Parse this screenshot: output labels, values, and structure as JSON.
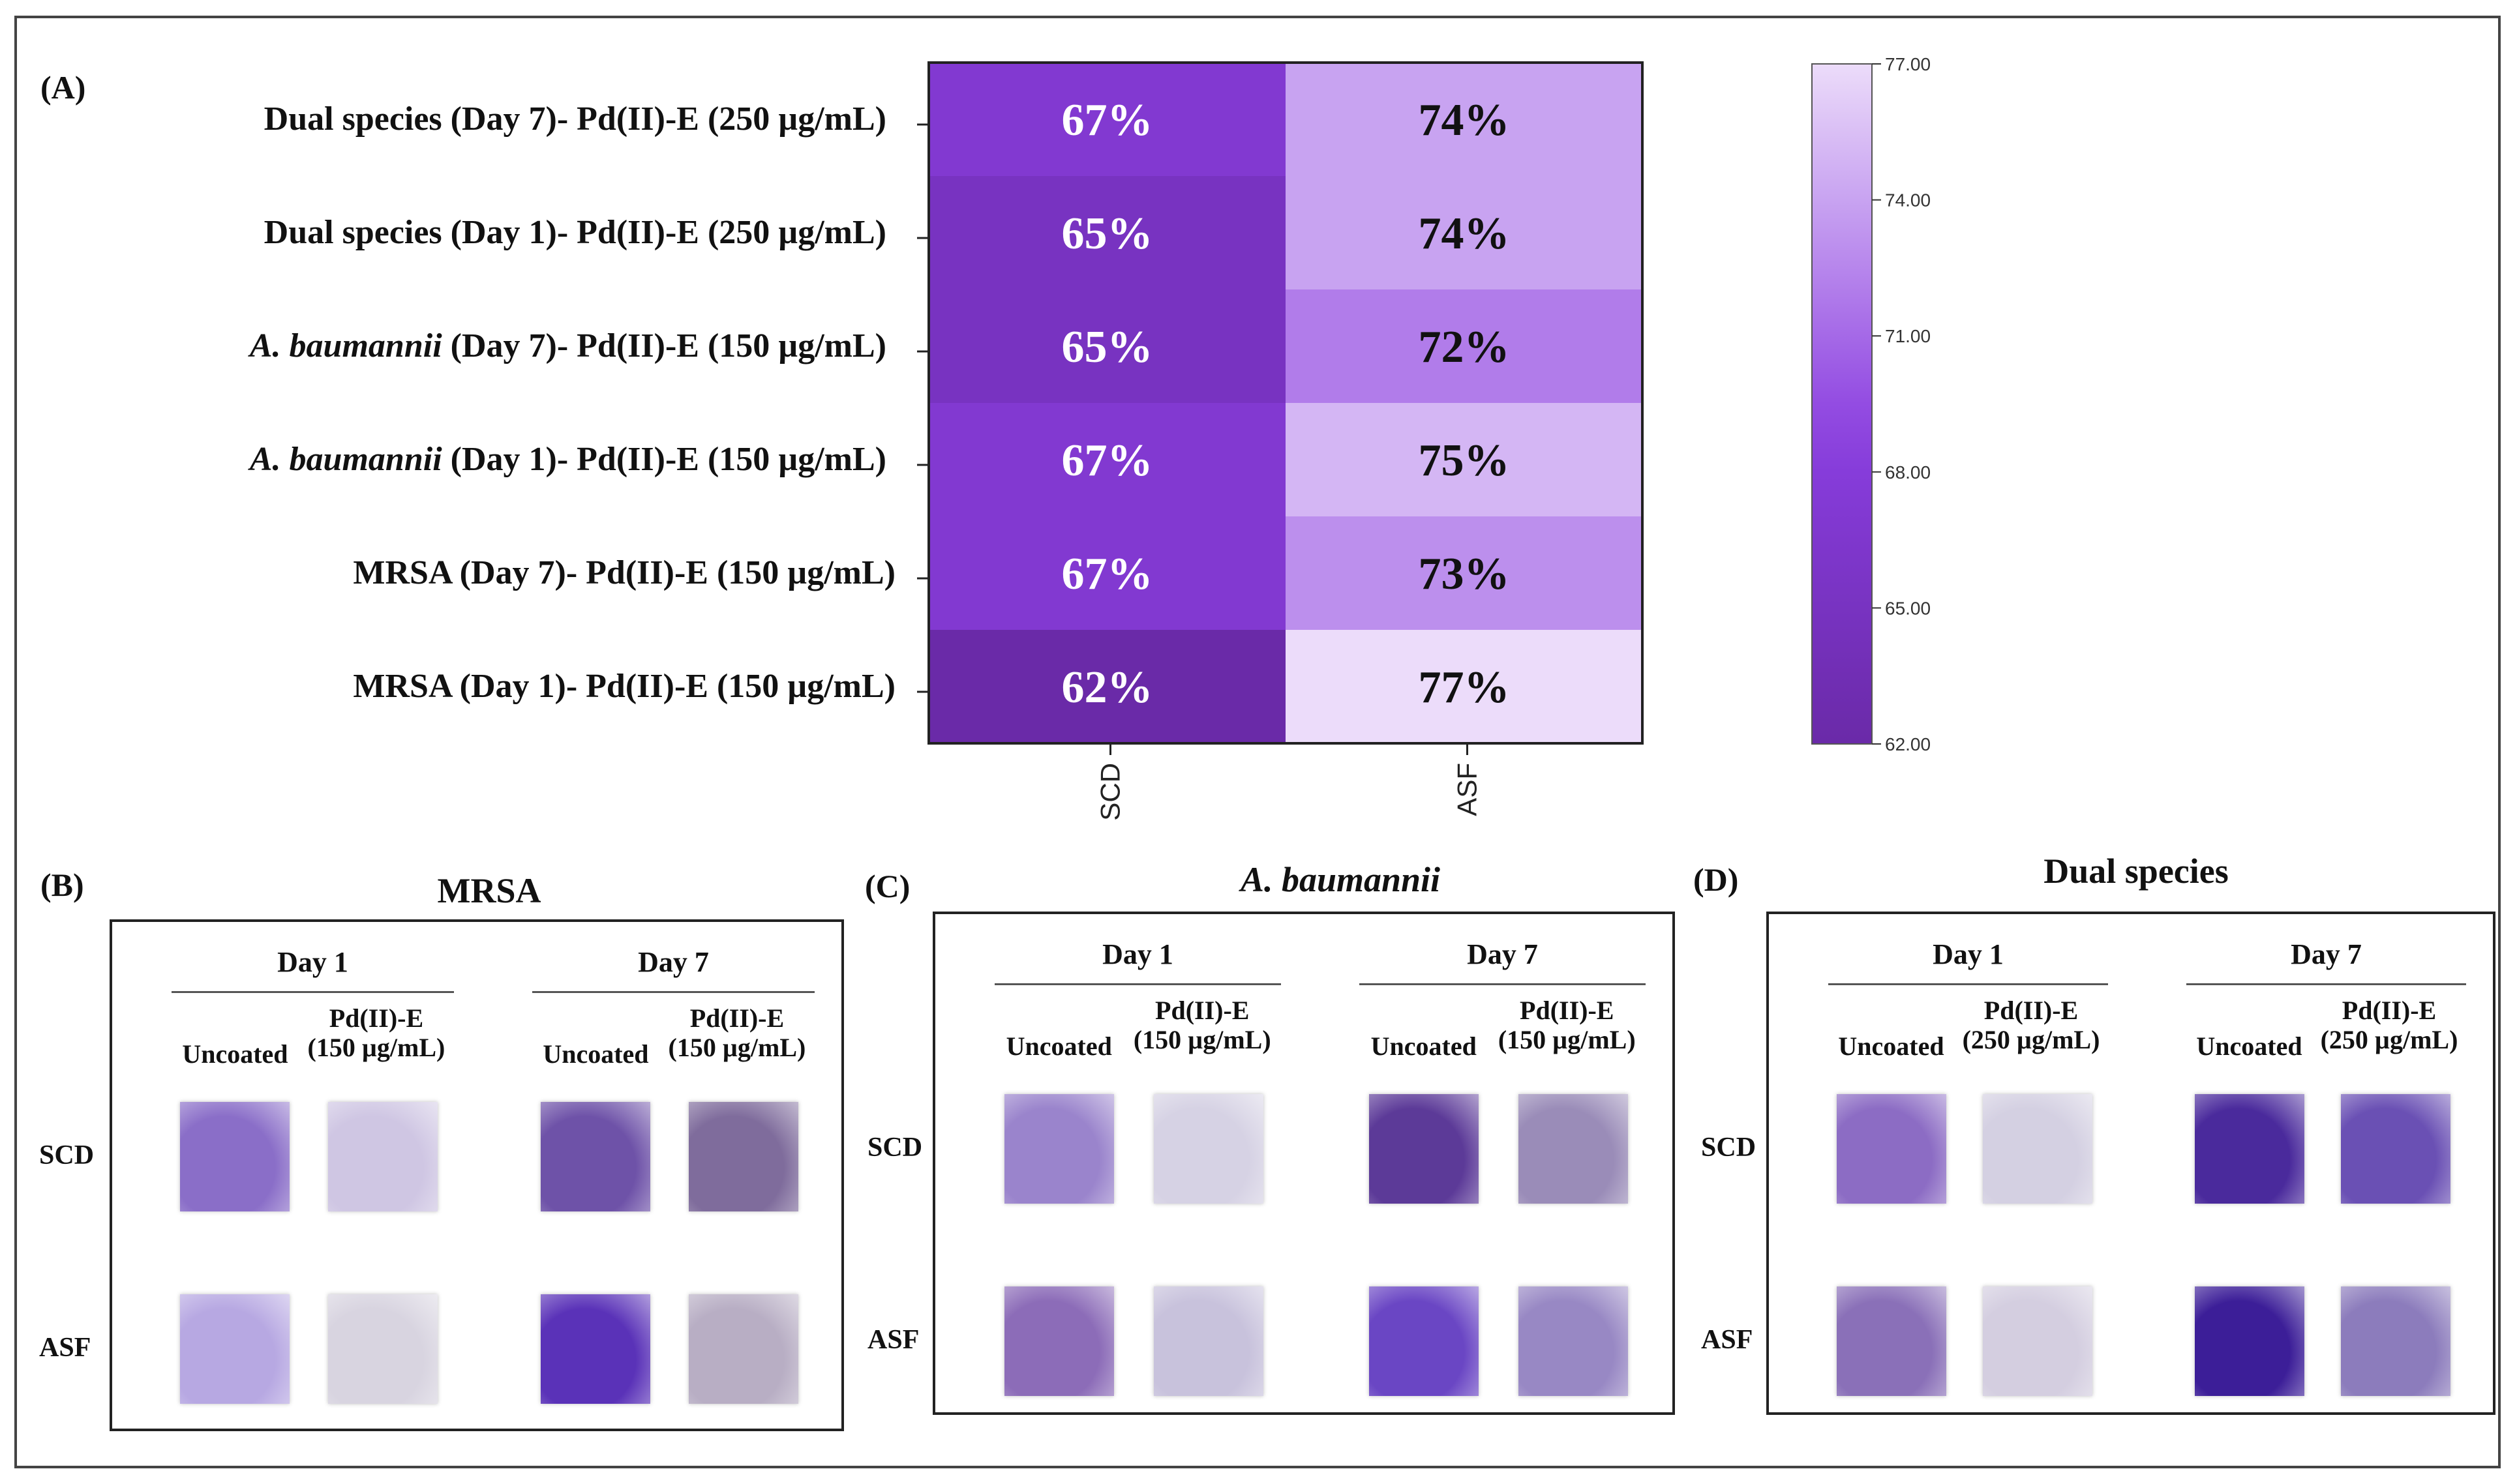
{
  "chart_data": {
    "type": "heatmap",
    "panel_label": "(A)",
    "columns": [
      "SCD",
      "ASF"
    ],
    "rows": [
      {
        "label_prefix_italic": "",
        "label": "Dual species (Day 7)- Pd(II)-E (250 µg/mL)",
        "values": [
          67,
          74
        ],
        "text": [
          "67%",
          "74%"
        ]
      },
      {
        "label_prefix_italic": "",
        "label": "Dual species (Day 1)- Pd(II)-E (250 µg/mL)",
        "values": [
          65,
          74
        ],
        "text": [
          "65%",
          "74%"
        ]
      },
      {
        "label_prefix_italic": "A. baumannii",
        "label": " (Day 7)- Pd(II)-E (150 µg/mL)",
        "values": [
          65,
          72
        ],
        "text": [
          "65%",
          "72%"
        ]
      },
      {
        "label_prefix_italic": "A. baumannii",
        "label": " (Day 1)- Pd(II)-E (150 µg/mL)",
        "values": [
          67,
          75
        ],
        "text": [
          "67%",
          "75%"
        ]
      },
      {
        "label_prefix_italic": "",
        "label": "MRSA (Day 7)- Pd(II)-E (150 µg/mL)",
        "values": [
          67,
          73
        ],
        "text": [
          "67%",
          "73%"
        ]
      },
      {
        "label_prefix_italic": "",
        "label": "MRSA (Day 1)- Pd(II)-E (150 µg/mL)",
        "values": [
          62,
          77
        ],
        "text": [
          "62%",
          "77%"
        ]
      }
    ],
    "colorbar": {
      "min": 62,
      "max": 77,
      "ticks": [
        "77.00",
        "74.00",
        "71.00",
        "68.00",
        "65.00",
        "62.00"
      ],
      "colors": {
        "min": "#6a2aa8",
        "mid": "#8a3ee0",
        "max": "#ecdcfa"
      }
    }
  },
  "panels": [
    {
      "letter": "(B)",
      "title": "MRSA",
      "title_italic": false,
      "day1": "Day 1",
      "day7": "Day 7",
      "uncoated": "Uncoated",
      "coated_line1": "Pd(II)-E",
      "coated_line2": "(150 µg/mL)",
      "row1": "SCD",
      "row2": "ASF",
      "swatch_colors": [
        [
          "#8a6ec8",
          "#cfc6e3",
          "#6e52a8",
          "#7f6c9c"
        ],
        [
          "#b7a8e2",
          "#d8d4e0",
          "#5a32b8",
          "#b8aec4"
        ]
      ]
    },
    {
      "letter": "(C)",
      "title": "A. baumannii",
      "title_italic": true,
      "day1": "Day 1",
      "day7": "Day 7",
      "uncoated": "Uncoated",
      "coated_line1": "Pd(II)-E",
      "coated_line2": "(150 µg/mL)",
      "row1": "SCD",
      "row2": "ASF",
      "swatch_colors": [
        [
          "#9a84cc",
          "#d6d2e4",
          "#5c3a98",
          "#9a8cb8"
        ],
        [
          "#8c6cb8",
          "#c8c2dc",
          "#6a46c4",
          "#9888c4"
        ]
      ]
    },
    {
      "letter": "(D)",
      "title": "Dual species",
      "title_italic": false,
      "day1": "Day 1",
      "day7": "Day 7",
      "uncoated": "Uncoated",
      "coated_line1": "Pd(II)-E",
      "coated_line2": "(250 µg/mL)",
      "row1": "SCD",
      "row2": "ASF",
      "swatch_colors": [
        [
          "#8c6cc4",
          "#d4d0e2",
          "#4a2a9c",
          "#6a50b4"
        ],
        [
          "#8a70b8",
          "#d4cee0",
          "#3c1e98",
          "#8c7cbc"
        ]
      ]
    }
  ]
}
